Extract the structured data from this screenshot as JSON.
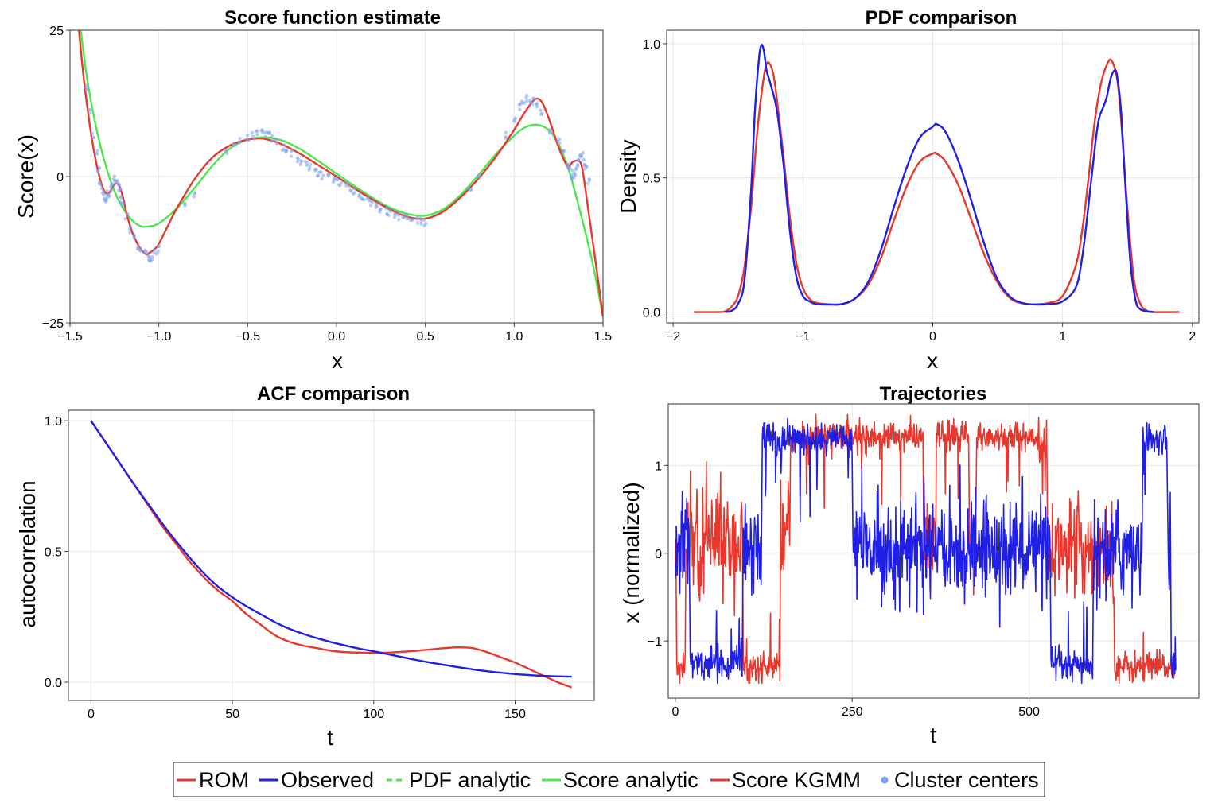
{
  "chart_data": [
    {
      "type": "line",
      "title": "Score function estimate",
      "xlabel": "x",
      "ylabel": "Score(x)",
      "xlim": [
        -1.5,
        1.5
      ],
      "ylim": [
        -25,
        25
      ],
      "xticks": [
        -1.5,
        -1.0,
        -0.5,
        0.0,
        0.5,
        1.0,
        1.5
      ],
      "xtick_labels": [
        "−1.5",
        "−1.0",
        "−0.5",
        "0.0",
        "0.5",
        "1.0",
        "1.5"
      ],
      "yticks": [
        -25,
        0,
        25
      ],
      "ytick_labels": [
        "−25",
        "0",
        "25"
      ],
      "grid": true,
      "series": [
        {
          "name": "Score analytic",
          "color": "#4de84d",
          "x": [
            -1.44,
            -1.4,
            -1.35,
            -1.3,
            -1.25,
            -1.2,
            -1.15,
            -1.1,
            -1.05,
            -1.0,
            -0.9,
            -0.8,
            -0.7,
            -0.6,
            -0.5,
            -0.4,
            -0.3,
            -0.2,
            -0.1,
            0.0,
            0.1,
            0.2,
            0.3,
            0.4,
            0.5,
            0.6,
            0.7,
            0.8,
            0.9,
            1.0,
            1.05,
            1.1,
            1.15,
            1.2,
            1.25,
            1.3,
            1.35,
            1.4,
            1.45,
            1.5
          ],
          "y": [
            25,
            16,
            8,
            2,
            -2.5,
            -5.5,
            -7.5,
            -8.5,
            -8.5,
            -8,
            -5.5,
            -2,
            1.8,
            4.8,
            6.3,
            6.7,
            6.1,
            4.6,
            2.6,
            0.5,
            -1.6,
            -3.6,
            -5.3,
            -6.4,
            -6.7,
            -5.6,
            -3.1,
            0.3,
            3.9,
            7,
            8.2,
            8.8,
            8.7,
            7.8,
            5.5,
            1.8,
            -3.5,
            -9.5,
            -16,
            -24
          ]
        },
        {
          "name": "Score KGMM",
          "color": "#e8382d",
          "x": [
            -1.45,
            -1.42,
            -1.38,
            -1.35,
            -1.32,
            -1.3,
            -1.28,
            -1.26,
            -1.24,
            -1.22,
            -1.2,
            -1.18,
            -1.15,
            -1.12,
            -1.1,
            -1.07,
            -1.05,
            -1.02,
            -1.0,
            -0.95,
            -0.9,
            -0.8,
            -0.7,
            -0.6,
            -0.5,
            -0.42,
            -0.35,
            -0.3,
            -0.2,
            -0.1,
            0.0,
            0.1,
            0.2,
            0.3,
            0.4,
            0.5,
            0.6,
            0.7,
            0.8,
            0.9,
            1.0,
            1.05,
            1.1,
            1.13,
            1.16,
            1.2,
            1.25,
            1.3,
            1.33,
            1.36,
            1.38,
            1.4,
            1.43,
            1.46,
            1.5
          ],
          "y": [
            25,
            16,
            7,
            2,
            -1.5,
            -2.8,
            -2.8,
            -1.8,
            -1.2,
            -1.8,
            -3.8,
            -6.5,
            -9.5,
            -11.5,
            -12.5,
            -13.3,
            -13,
            -12.3,
            -11.5,
            -8.5,
            -5.5,
            -0.5,
            3.2,
            5.3,
            6.3,
            6.5,
            6,
            5.4,
            3.8,
            1.9,
            0,
            -2,
            -3.9,
            -5.6,
            -6.9,
            -7.2,
            -6,
            -3.5,
            -0.3,
            3.5,
            8,
            10.5,
            12.7,
            13.3,
            12.5,
            9.5,
            5,
            1.8,
            2.5,
            2.7,
            1.8,
            -2,
            -8.5,
            -15,
            -24
          ]
        },
        {
          "name": "Cluster centers",
          "color": "#7ba3f0",
          "style": "scatter",
          "x": [
            -1.41,
            -1.39,
            -1.37,
            -1.35,
            -1.34,
            -1.33,
            -1.32,
            -1.31,
            -1.3,
            -1.29,
            -1.28,
            -1.27,
            -1.26,
            -1.25,
            -1.24,
            -1.23,
            -1.22,
            -1.21,
            -1.2,
            -1.18,
            -1.16,
            -1.14,
            -1.12,
            -1.1,
            -1.08,
            -1.06,
            -1.05,
            -1.04,
            -1.02,
            -1.0,
            -0.85,
            -0.8,
            -0.62,
            -0.58,
            -0.55,
            -0.5,
            -0.47,
            -0.45,
            -0.42,
            -0.4,
            -0.38,
            -0.36,
            -0.34,
            -0.3,
            -0.28,
            -0.25,
            -0.22,
            -0.2,
            -0.17,
            -0.15,
            -0.12,
            -0.1,
            -0.08,
            -0.05,
            -0.02,
            0.0,
            0.02,
            0.05,
            0.08,
            0.1,
            0.13,
            0.15,
            0.18,
            0.2,
            0.23,
            0.25,
            0.28,
            0.3,
            0.33,
            0.35,
            0.38,
            0.4,
            0.42,
            0.45,
            0.48,
            0.5,
            0.75,
            0.8,
            0.95,
            1.0,
            1.03,
            1.05,
            1.07,
            1.09,
            1.11,
            1.13,
            1.15,
            1.2,
            1.25,
            1.28,
            1.3,
            1.31,
            1.32,
            1.33,
            1.34,
            1.35,
            1.36,
            1.37,
            1.38,
            1.39,
            1.4,
            1.42
          ],
          "y": [
            15,
            11,
            7,
            4,
            1,
            -1,
            -2.5,
            -3.5,
            -3.8,
            -3,
            -2.8,
            -2.2,
            -1.5,
            -0.5,
            -0.8,
            -1.5,
            -2.5,
            -4,
            -5,
            -7,
            -9,
            -10.5,
            -12,
            -12.5,
            -13,
            -13.5,
            -13.8,
            -14,
            -13,
            -12.5,
            -5,
            -3,
            4.5,
            5.5,
            6,
            6.5,
            7,
            7.2,
            7.5,
            7.3,
            7,
            6.5,
            6,
            5,
            4.5,
            4,
            3,
            2.5,
            2,
            1.5,
            1,
            0.5,
            0.2,
            0,
            -0.5,
            -0.5,
            -1,
            -1.5,
            -2,
            -2.5,
            -3,
            -3.5,
            -4,
            -4.5,
            -5,
            -5.5,
            -6,
            -6.3,
            -6.5,
            -6.8,
            -7,
            -7.2,
            -7.4,
            -7.5,
            -7.6,
            -7.8,
            -2,
            0,
            7,
            10,
            12,
            13,
            13.5,
            13.2,
            12.8,
            12,
            11,
            8,
            6,
            4,
            2,
            1,
            0.5,
            0,
            0.5,
            1.5,
            2.5,
            3,
            3.5,
            2.5,
            1.5,
            -1
          ]
        }
      ]
    },
    {
      "type": "line",
      "title": "PDF comparison",
      "xlabel": "x",
      "ylabel": "Density",
      "xlim": [
        -2.05,
        2.05
      ],
      "ylim": [
        -0.04,
        1.05
      ],
      "xticks": [
        -2,
        -1,
        0,
        1,
        2
      ],
      "xtick_labels": [
        "−2",
        "−1",
        "0",
        "1",
        "2"
      ],
      "yticks": [
        0.0,
        0.5,
        1.0
      ],
      "ytick_labels": [
        "0.0",
        "0.5",
        "1.0"
      ],
      "grid": true,
      "series": [
        {
          "name": "ROM",
          "color": "#e8382d",
          "x": [
            -1.84,
            -1.65,
            -1.6,
            -1.55,
            -1.5,
            -1.45,
            -1.4,
            -1.35,
            -1.3,
            -1.27,
            -1.23,
            -1.2,
            -1.15,
            -1.1,
            -1.05,
            -1.0,
            -0.95,
            -0.9,
            -0.8,
            -0.7,
            -0.6,
            -0.5,
            -0.4,
            -0.3,
            -0.2,
            -0.1,
            0.0,
            0.03,
            0.1,
            0.2,
            0.3,
            0.4,
            0.5,
            0.6,
            0.7,
            0.8,
            0.9,
            1.0,
            1.1,
            1.15,
            1.2,
            1.25,
            1.3,
            1.35,
            1.38,
            1.42,
            1.45,
            1.5,
            1.55,
            1.6,
            1.65,
            1.7,
            1.9
          ],
          "y": [
            0,
            0,
            0.003,
            0.02,
            0.06,
            0.17,
            0.39,
            0.68,
            0.88,
            0.93,
            0.89,
            0.79,
            0.58,
            0.35,
            0.18,
            0.09,
            0.05,
            0.035,
            0.029,
            0.03,
            0.05,
            0.1,
            0.2,
            0.34,
            0.47,
            0.56,
            0.59,
            0.59,
            0.56,
            0.47,
            0.34,
            0.21,
            0.11,
            0.05,
            0.032,
            0.029,
            0.035,
            0.06,
            0.17,
            0.3,
            0.5,
            0.72,
            0.86,
            0.93,
            0.935,
            0.87,
            0.72,
            0.38,
            0.12,
            0.03,
            0.005,
            0,
            0
          ]
        },
        {
          "name": "Observed",
          "color": "#1f1fe6",
          "x": [
            -1.6,
            -1.55,
            -1.5,
            -1.45,
            -1.4,
            -1.37,
            -1.34,
            -1.32,
            -1.3,
            -1.28,
            -1.25,
            -1.2,
            -1.15,
            -1.1,
            -1.05,
            -1.0,
            -0.95,
            -0.9,
            -0.8,
            -0.7,
            -0.6,
            -0.5,
            -0.4,
            -0.3,
            -0.2,
            -0.1,
            0.0,
            0.03,
            0.1,
            0.2,
            0.3,
            0.4,
            0.5,
            0.6,
            0.7,
            0.8,
            0.9,
            1.0,
            1.1,
            1.15,
            1.2,
            1.25,
            1.28,
            1.31,
            1.34,
            1.37,
            1.4,
            1.42,
            1.45,
            1.48,
            1.52,
            1.56,
            1.6,
            1.7
          ],
          "y": [
            0,
            0.005,
            0.03,
            0.12,
            0.45,
            0.75,
            0.94,
            0.995,
            0.97,
            0.9,
            0.85,
            0.75,
            0.55,
            0.3,
            0.13,
            0.06,
            0.04,
            0.03,
            0.028,
            0.03,
            0.05,
            0.11,
            0.23,
            0.39,
            0.54,
            0.65,
            0.69,
            0.7,
            0.67,
            0.56,
            0.41,
            0.25,
            0.12,
            0.055,
            0.033,
            0.028,
            0.03,
            0.04,
            0.09,
            0.2,
            0.4,
            0.62,
            0.72,
            0.76,
            0.8,
            0.87,
            0.9,
            0.88,
            0.75,
            0.5,
            0.2,
            0.05,
            0.01,
            0
          ]
        }
      ]
    },
    {
      "type": "line",
      "title": "ACF comparison",
      "xlabel": "t",
      "ylabel": "autocorrelation",
      "xlim": [
        -8,
        178
      ],
      "ylim": [
        -0.07,
        1.04
      ],
      "xticks": [
        0,
        50,
        100,
        150
      ],
      "xtick_labels": [
        "0",
        "50",
        "100",
        "150"
      ],
      "yticks": [
        0.0,
        0.5,
        1.0
      ],
      "ytick_labels": [
        "0.0",
        "0.5",
        "1.0"
      ],
      "grid": true,
      "series": [
        {
          "name": "ROM",
          "color": "#e8382d",
          "x": [
            0,
            5,
            10,
            15,
            20,
            25,
            30,
            35,
            40,
            45,
            50,
            55,
            60,
            65,
            70,
            75,
            80,
            85,
            90,
            95,
            100,
            105,
            110,
            115,
            120,
            125,
            130,
            135,
            140,
            145,
            150,
            155,
            160,
            165,
            170
          ],
          "y": [
            1.0,
            0.92,
            0.84,
            0.76,
            0.68,
            0.6,
            0.53,
            0.46,
            0.4,
            0.35,
            0.31,
            0.26,
            0.22,
            0.18,
            0.155,
            0.14,
            0.13,
            0.12,
            0.115,
            0.113,
            0.112,
            0.113,
            0.116,
            0.12,
            0.125,
            0.13,
            0.133,
            0.13,
            0.115,
            0.095,
            0.075,
            0.05,
            0.025,
            0.0,
            -0.02
          ]
        },
        {
          "name": "Observed",
          "color": "#1f1fe6",
          "x": [
            0,
            5,
            10,
            15,
            20,
            25,
            30,
            35,
            40,
            45,
            50,
            55,
            60,
            65,
            70,
            75,
            80,
            85,
            90,
            95,
            100,
            105,
            110,
            115,
            120,
            125,
            130,
            135,
            140,
            145,
            150,
            155,
            160,
            165,
            170
          ],
          "y": [
            1.0,
            0.92,
            0.84,
            0.76,
            0.685,
            0.61,
            0.54,
            0.475,
            0.415,
            0.365,
            0.325,
            0.29,
            0.26,
            0.23,
            0.205,
            0.185,
            0.168,
            0.153,
            0.14,
            0.128,
            0.118,
            0.107,
            0.096,
            0.085,
            0.075,
            0.066,
            0.057,
            0.049,
            0.042,
            0.036,
            0.031,
            0.027,
            0.024,
            0.022,
            0.021
          ]
        }
      ]
    },
    {
      "type": "line",
      "title": "Trajectories",
      "xlabel": "t",
      "ylabel": "x (normalized)",
      "xlim": [
        -10,
        740
      ],
      "ylim": [
        -1.65,
        1.7
      ],
      "xticks": [
        0,
        250,
        500
      ],
      "xtick_labels": [
        "0",
        "250",
        "500"
      ],
      "yticks": [
        -1,
        0,
        1
      ],
      "ytick_labels": [
        "−1",
        "0",
        "1"
      ],
      "grid": true,
      "series": [
        {
          "name": "ROM",
          "color": "#e8382d",
          "segments": [
            [
              0,
              1,
              0.05
            ],
            [
              2,
              14,
              -1.3
            ],
            [
              15,
              95,
              0.1
            ],
            [
              96,
              148,
              -1.3
            ],
            [
              149,
              162,
              0.2
            ],
            [
              163,
              350,
              1.33
            ],
            [
              351,
              368,
              0.05
            ],
            [
              369,
              415,
              1.33
            ],
            [
              416,
              425,
              0.05
            ],
            [
              426,
              525,
              1.33
            ],
            [
              526,
              620,
              0.05
            ],
            [
              621,
              708,
              -1.3
            ]
          ]
        },
        {
          "name": "Observed",
          "color": "#1f1fe6",
          "segments": [
            [
              0,
              20,
              0.1
            ],
            [
              21,
              95,
              -1.25
            ],
            [
              96,
              122,
              0.1
            ],
            [
              123,
              140,
              1.35
            ],
            [
              141,
              150,
              1.25
            ],
            [
              151,
              160,
              1.3
            ],
            [
              161,
              250,
              1.3
            ],
            [
              251,
              300,
              0.05
            ],
            [
              301,
              500,
              0.05
            ],
            [
              501,
              525,
              0.05
            ],
            [
              526,
              530,
              0.05
            ],
            [
              531,
              590,
              -1.3
            ],
            [
              591,
              660,
              0.05
            ],
            [
              661,
              695,
              1.3
            ],
            [
              696,
              700,
              0.1
            ],
            [
              701,
              708,
              -1.3
            ]
          ]
        }
      ]
    }
  ],
  "legend": {
    "items": [
      {
        "label": "ROM",
        "color": "#e8382d",
        "style": "solid"
      },
      {
        "label": "Observed",
        "color": "#1f1fe6",
        "style": "solid"
      },
      {
        "label": "PDF analytic",
        "color": "#4de84d",
        "style": "dashed"
      },
      {
        "label": "Score analytic",
        "color": "#4de84d",
        "style": "solid"
      },
      {
        "label": "Score KGMM",
        "color": "#e8382d",
        "style": "solid"
      },
      {
        "label": "Cluster centers",
        "color": "#7ba3f0",
        "style": "dot"
      }
    ]
  }
}
